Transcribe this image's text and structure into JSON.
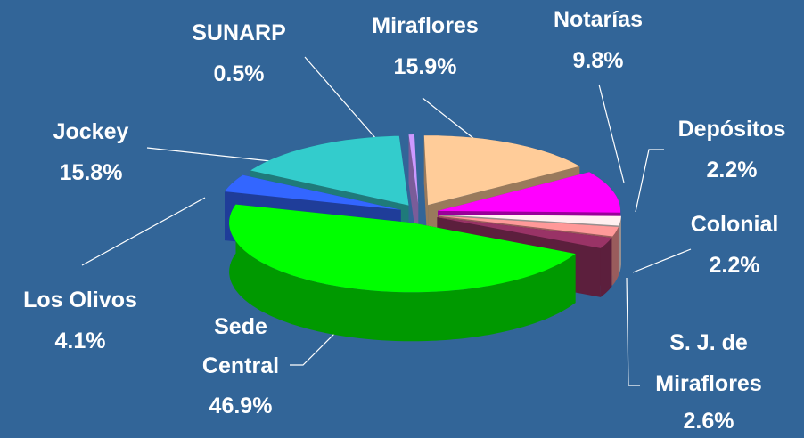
{
  "chart_data": {
    "type": "pie3d",
    "categories": [
      "SUNARP",
      "Miraflores",
      "Notarías",
      "Depósitos",
      "Colonial",
      "S. J. de Miraflores",
      "Sede Central",
      "Los Olivos",
      "Jockey"
    ],
    "values": [
      0.5,
      15.9,
      9.8,
      2.2,
      2.2,
      2.6,
      46.9,
      4.1,
      15.8
    ],
    "value_labels": [
      "0.5%",
      "15.9%",
      "9.8%",
      "2.2%",
      "2.2%",
      "2.6%",
      "46.9%",
      "4.1%",
      "15.8%"
    ],
    "colors": [
      "#cc99ff",
      "#ffcc99",
      "#ff00ff",
      "#fff0f0",
      "#ff9999",
      "#993366",
      "#00ff00",
      "#3366ff",
      "#33cccc"
    ]
  }
}
